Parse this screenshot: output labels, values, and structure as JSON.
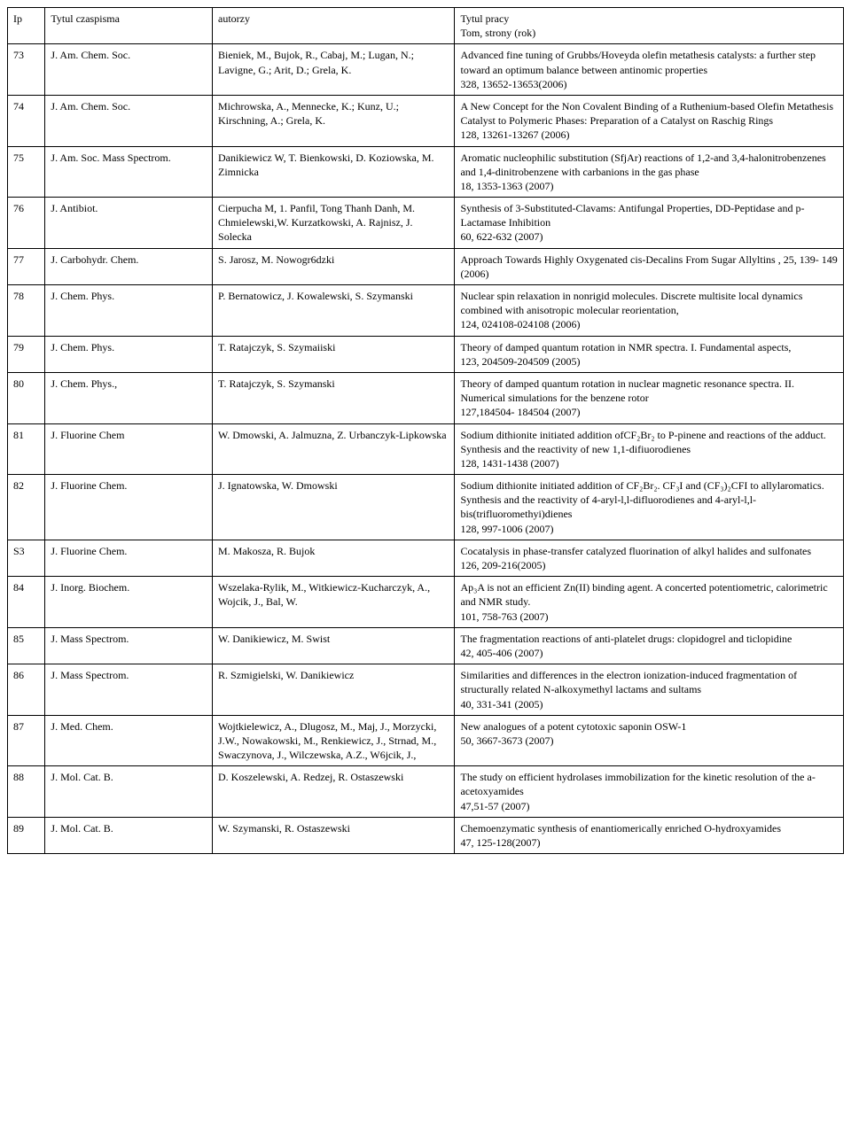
{
  "headers": {
    "ip": "Ip",
    "journal": "Tytul czaspisma",
    "authors": "autorzy",
    "title": "Tytul pracy\nTom, strony (rok)"
  },
  "rows": [
    {
      "ip": "73",
      "journal": "J. Am. Chem. Soc.",
      "authors": "Bieniek, M., Bujok, R., Cabaj, M.; Lugan, N.; Lavigne, G.; Arit, D.; Grela, K.",
      "title": "Advanced fine tuning of Grubbs/Hoveyda olefin metathesis catalysts: a further step toward an optimum balance between antinomic properties\n 328, 13652-13653(2006)"
    },
    {
      "ip": "74",
      "journal": "J. Am. Chem. Soc.",
      "authors": "Michrowska, A., Mennecke, K.; Kunz, U.; Kirschning, A.; Grela, K.",
      "title": "A New Concept for the Non Covalent Binding of a Ruthenium-based Olefin Metathesis Catalyst to Polymeric Phases: Preparation of a Catalyst on Raschig Rings\n 128, 13261-13267 (2006)"
    },
    {
      "ip": "75",
      "journal": "J. Am. Soc. Mass Spectrom.",
      "authors": "Danikiewicz W, T. Bienkowski, D. Koziowska, M. Zimnicka",
      "title": "Aromatic nucleophilic substitution (SfjAr) reactions of 1,2-and 3,4-halonitrobenzenes and 1,4-dinitrobenzene with carbanions in the gas phase\n18, 1353-1363 (2007)"
    },
    {
      "ip": "76",
      "journal": "J. Antibiot.",
      "authors": "Cierpucha M, 1. Panfil, Tong Thanh Danh, M. Chmielewski,W. Kurzatkowski, A. Rajnisz, J. Solecka",
      "title": "Synthesis of 3-Substituted-Clavams: Antifungal Properties, DD-Peptidase and p-Lactamase Inhibition\n60, 622-632 (2007)"
    },
    {
      "ip": "77",
      "journal": "J. Carbohydr. Chem.",
      "authors": "S. Jarosz, M. Nowogr6dzki",
      "title": "Approach Towards Highly Oxygenated cis-Decalins From Sugar Allyltins , 25, 139- 149 (2006)"
    },
    {
      "ip": "78",
      "journal": "J. Chem. Phys.",
      "authors": "P. Bernatowicz, J. Kowalewski, S. Szymanski",
      "title": "Nuclear spin relaxation in nonrigid molecules. Discrete multisite local dynamics combined with anisotropic molecular reorientation,\n124, 024108-024108 (2006)"
    },
    {
      "ip": "79",
      "journal": "J. Chem. Phys.",
      "authors": "T. Ratajczyk, S. Szymaiiski",
      "title": " Theory of damped quantum rotation in NMR spectra. I. Fundamental aspects,\n123, 204509-204509 (2005)"
    },
    {
      "ip": "80",
      "journal": "J. Chem. Phys.,",
      "authors": "T. Ratajczyk, S. Szymanski",
      "title": "Theory of damped quantum rotation in nuclear magnetic resonance spectra. II. Numerical simulations for the benzene rotor\n127,184504- 184504 (2007)"
    },
    {
      "ip": "81",
      "journal": "J. Fluorine Chem",
      "authors": "W. Dmowski, A. Jalmuzna, Z. Urbanczyk-Lipkowska",
      "title": "Sodium dithionite initiated addition ofCF₂Br₂ to P-pinene and reactions of the adduct. Synthesis and the reactivity of new 1,1-difiuorodienes\n128, 1431-1438 (2007)"
    },
    {
      "ip": "82",
      "journal": "J. Fluorine Chem.",
      "authors": "J. Ignatowska, W. Dmowski",
      "title": "Sodium dithionite initiated addition of CF₂Br₂. CF₃I and (CF₃)₂CFI to allylaromatics. Synthesis and the reactivity of 4-aryl-l,l-difluorodienes and 4-aryl-l,l-bis(trifluoromethyi)dienes\n128, 997-1006 (2007)"
    },
    {
      "ip": "S3",
      "journal": "J. Fluorine Chem.",
      "authors": "M. Makosza, R. Bujok",
      "title": "Cocatalysis in phase-transfer catalyzed fluorination of alkyl halides and sulfonates\n126, 209-216(2005)"
    },
    {
      "ip": "84",
      "journal": "J. Inorg. Biochem.",
      "authors": "Wszelaka-Rylik, M., Witkiewicz-Kucharczyk, A., Wojcik, J., Bal, W.",
      "title": "Ap₃A is not an efficient Zn(II) binding agent. A concerted potentiometric, calorimetric and NMR study.\n101, 758-763 (2007)"
    },
    {
      "ip": "85",
      "journal": "J. Mass Spectrom.",
      "authors": "W. Danikiewicz, M. Swist",
      "title": "The fragmentation reactions of anti-platelet drugs: clopidogrel and ticlopidine\n42, 405-406 (2007)"
    },
    {
      "ip": "86",
      "journal": "J. Mass Spectrom.",
      "authors": "R. Szmigielski, W. Danikiewicz",
      "title": "Similarities and differences in the electron ionization-induced fragmentation of structurally related N-alkoxymethyl lactams and sultams\n40, 331-341 (2005)"
    },
    {
      "ip": "87",
      "journal": "J. Med. Chem.",
      "authors": "Wojtkielewicz, A., Dlugosz, M., Maj, J., Morzycki, J.W., Nowakowski, M., Renkiewicz, J., Strnad, M., Swaczynova, J., Wilczewska, A.Z., W6jcik, J.,",
      "title": "New analogues of a potent cytotoxic saponin OSW-1\n50, 3667-3673 (2007)"
    },
    {
      "ip": "88",
      "journal": "J. Mol. Cat. B.",
      "authors": "D. Koszelewski, A. Redzej, R. Ostaszewski",
      "title": "The study on efficient hydrolases immobilization for the kinetic resolution of the a-acetoxyamides\n47,51-57 (2007)"
    },
    {
      "ip": "89",
      "journal": "J. Mol. Cat. B.",
      "authors": "W. Szymanski, R. Ostaszewski",
      "title": "Chemoenzymatic synthesis of enantiomerically enriched O-hydroxyamides\n47, 125-128(2007)"
    }
  ]
}
